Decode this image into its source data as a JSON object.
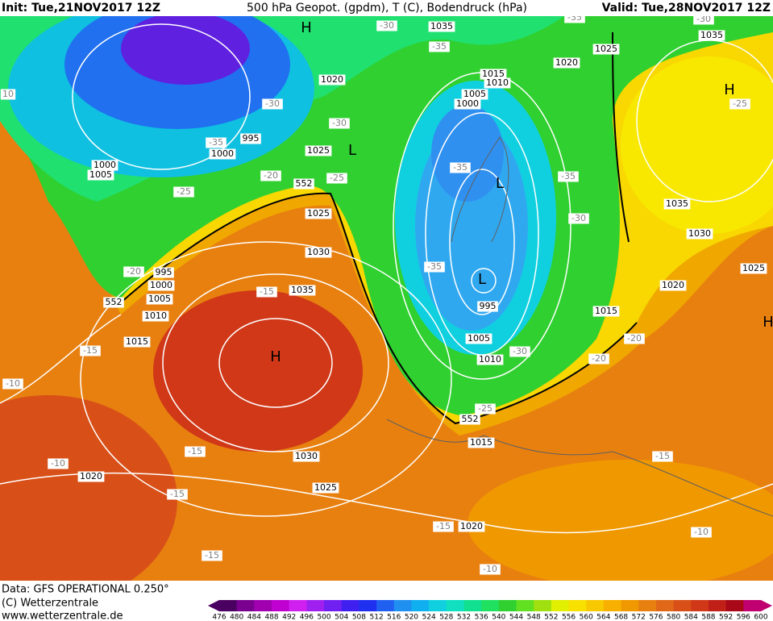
{
  "header": {
    "init": "Init: Tue,21NOV2017 12Z",
    "title": "500 hPa Geopot. (gpdm), T (C), Bodendruck (hPa)",
    "valid": "Valid: Tue,28NOV2017 12Z"
  },
  "footer": {
    "data": "Data: GFS OPERATIONAL 0.250°",
    "copyright": "(C) Wetterzentrale",
    "url": "www.wetterzentrale.de"
  },
  "colorbar": {
    "ticks": [
      476,
      480,
      484,
      488,
      492,
      496,
      500,
      504,
      508,
      512,
      516,
      520,
      524,
      528,
      532,
      536,
      540,
      544,
      548,
      552,
      556,
      560,
      564,
      568,
      572,
      576,
      580,
      584,
      588,
      592,
      596,
      600
    ],
    "colors": [
      "#4a0060",
      "#7a0090",
      "#a000b0",
      "#c000d0",
      "#d020f0",
      "#a020f0",
      "#7020f0",
      "#4020f0",
      "#2030f0",
      "#2060f0",
      "#2090f0",
      "#10b0f0",
      "#10d0e0",
      "#10e0c0",
      "#10e090",
      "#20e060",
      "#30d030",
      "#60e020",
      "#a0e010",
      "#e0f000",
      "#f8e000",
      "#f8c800",
      "#f8b000",
      "#f09800",
      "#e88010",
      "#e06818",
      "#d85018",
      "#d03818",
      "#c02018",
      "#a80818",
      "#c00070"
    ]
  },
  "map_labels": [
    "H",
    "1035",
    "-35",
    "1020",
    "1025",
    "1035",
    "-30",
    "-35",
    "-30",
    "1015",
    "1010",
    "1005",
    "1000",
    "1020",
    "-30",
    "-30",
    "995",
    "-35",
    "1000",
    "1025",
    "L",
    "1000",
    "1005",
    "-25",
    "-20",
    "552",
    "-25",
    "-35",
    "L",
    "-35",
    "H",
    "-25",
    "1035",
    "1025",
    "-30",
    "1030",
    "1030",
    "-35",
    "L",
    "995",
    "-20",
    "995",
    "1000",
    "552",
    "1005",
    "1010",
    "-15",
    "1035",
    "1020",
    "1025",
    "1015",
    "1015",
    "-15",
    "H",
    "1005",
    "1010",
    "-30",
    "-20",
    "-20",
    "-10",
    "-25",
    "552",
    "1015",
    "-15",
    "1030",
    "-15",
    "-10",
    "1020",
    "1025",
    "-15",
    "-15",
    "1020",
    "-10",
    "-15",
    "-10",
    "10",
    "H"
  ]
}
